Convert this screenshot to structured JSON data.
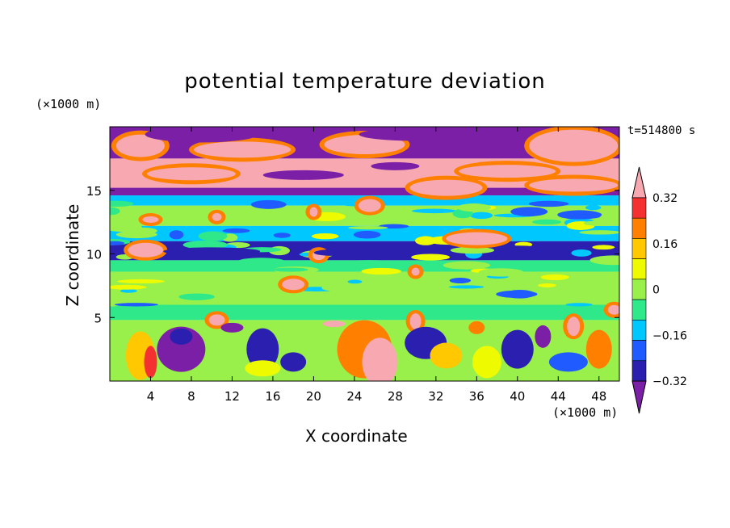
{
  "chart_data": {
    "type": "heatmap",
    "title": "potential temperature deviation",
    "xlabel": "X coordinate",
    "ylabel": "Z coordinate",
    "x_unit": "(×1000 m)",
    "y_unit": "(×1000 m)",
    "time_label": "t=514800 s",
    "xlim": [
      0,
      50
    ],
    "ylim": [
      0,
      20
    ],
    "x_ticks": [
      4,
      8,
      12,
      16,
      20,
      24,
      28,
      32,
      36,
      40,
      44,
      48
    ],
    "y_ticks": [
      5,
      10,
      15
    ],
    "colorbar": {
      "levels": [
        -0.4,
        -0.32,
        -0.24,
        -0.16,
        -0.08,
        0,
        0.08,
        0.16,
        0.24,
        0.32,
        0.4
      ],
      "tick_labels": [
        "0.32",
        "0.16",
        "0",
        "−0.16",
        "−0.32"
      ],
      "tick_values": [
        0.32,
        0.16,
        0,
        -0.16,
        -0.32
      ],
      "colors": [
        "#7b1fa6",
        "#2b1fb0",
        "#1f5bff",
        "#00c8ff",
        "#2ee88a",
        "#99f04a",
        "#eefb00",
        "#ffc800",
        "#ff7f00",
        "#f53030",
        "#f7a8b0"
      ]
    },
    "bands": [
      {
        "z": [
          17.5,
          20
        ],
        "value": -0.45
      },
      {
        "z": [
          15.2,
          17.5
        ],
        "value": 0.45
      },
      {
        "z": [
          14.6,
          15.2
        ],
        "value": -0.45
      },
      {
        "z": [
          13.8,
          14.6
        ],
        "value": -0.16
      },
      {
        "z": [
          12.2,
          13.8
        ],
        "value": 0.0
      },
      {
        "z": [
          11.0,
          12.2
        ],
        "value": -0.16
      },
      {
        "z": [
          9.5,
          11.0
        ],
        "value": -0.32
      },
      {
        "z": [
          8.6,
          9.5
        ],
        "value": -0.08
      },
      {
        "z": [
          6.0,
          8.6
        ],
        "value": 0.04
      },
      {
        "z": [
          4.8,
          6.0
        ],
        "value": -0.08
      },
      {
        "z": [
          0,
          4.8
        ],
        "value": 0.0
      }
    ]
  }
}
